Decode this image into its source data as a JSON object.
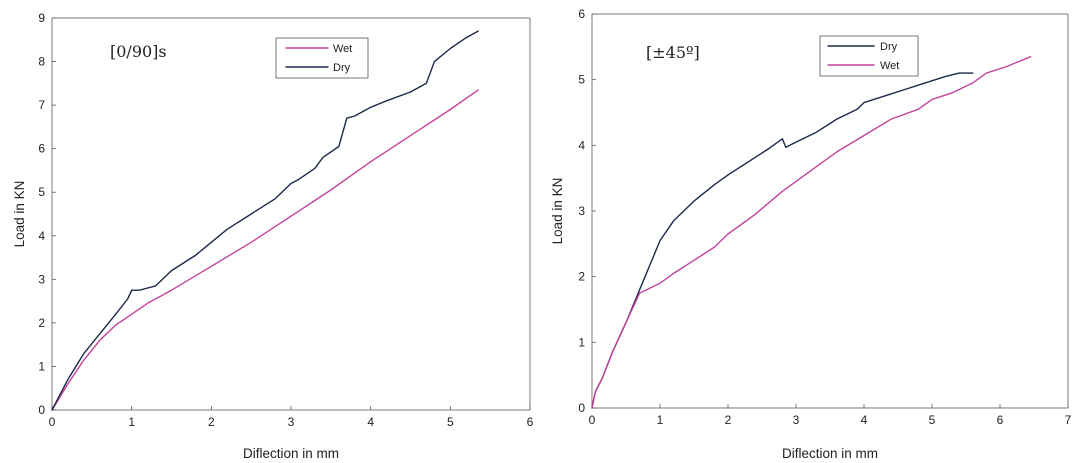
{
  "colors": {
    "wet": "#c2449a",
    "dry": "#1c2a4a"
  },
  "chart_data": [
    {
      "type": "line",
      "annotation": "[0/90]s",
      "xlabel": "Diflection in mm",
      "ylabel": "Load in KN",
      "xlim": [
        0,
        6
      ],
      "ylim": [
        0,
        9
      ],
      "xticks": [
        "0",
        "1",
        "2",
        "3",
        "4",
        "5",
        "6"
      ],
      "yticks": [
        "0",
        "1",
        "2",
        "3",
        "4",
        "5",
        "6",
        "7",
        "8",
        "9"
      ],
      "legend_position": "top-center",
      "grid": false,
      "series": [
        {
          "name": "Wet",
          "color_key": "wet",
          "x": [
            0,
            0.2,
            0.4,
            0.6,
            0.8,
            1.0,
            1.2,
            1.5,
            2.0,
            2.5,
            3.0,
            3.5,
            4.0,
            4.5,
            5.0,
            5.35
          ],
          "y": [
            0,
            0.6,
            1.15,
            1.6,
            1.95,
            2.2,
            2.45,
            2.75,
            3.3,
            3.85,
            4.45,
            5.05,
            5.7,
            6.3,
            6.9,
            7.35
          ]
        },
        {
          "name": "Dry",
          "color_key": "dry",
          "x": [
            0,
            0.2,
            0.4,
            0.6,
            0.8,
            0.95,
            1.0,
            1.1,
            1.2,
            1.3,
            1.5,
            1.8,
            2.0,
            2.2,
            2.5,
            2.8,
            3.0,
            3.1,
            3.3,
            3.4,
            3.6,
            3.7,
            3.8,
            3.9,
            4.0,
            4.2,
            4.5,
            4.7,
            4.8,
            5.0,
            5.2,
            5.35
          ],
          "y": [
            0,
            0.7,
            1.3,
            1.75,
            2.2,
            2.55,
            2.75,
            2.75,
            2.8,
            2.85,
            3.2,
            3.55,
            3.85,
            4.15,
            4.5,
            4.85,
            5.2,
            5.3,
            5.55,
            5.8,
            6.05,
            6.7,
            6.75,
            6.85,
            6.95,
            7.1,
            7.3,
            7.5,
            8.0,
            8.3,
            8.55,
            8.7
          ]
        }
      ]
    },
    {
      "type": "line",
      "annotation": "[±45º]",
      "xlabel": "Diflection in mm",
      "ylabel": "Load in KN",
      "xlim": [
        0,
        7
      ],
      "ylim": [
        0,
        6
      ],
      "xticks": [
        "0",
        "1",
        "2",
        "3",
        "4",
        "5",
        "6",
        "7"
      ],
      "yticks": [
        "0",
        "1",
        "2",
        "3",
        "4",
        "5",
        "6"
      ],
      "legend_position": "top-left",
      "grid": false,
      "series": [
        {
          "name": "Dry",
          "color_key": "dry",
          "x": [
            0,
            0.05,
            0.15,
            0.3,
            0.5,
            0.7,
            0.9,
            1.0,
            1.2,
            1.5,
            1.8,
            2.0,
            2.3,
            2.6,
            2.8,
            2.85,
            3.0,
            3.3,
            3.6,
            3.9,
            4.0,
            4.3,
            4.6,
            4.9,
            5.2,
            5.4,
            5.6
          ],
          "y": [
            0,
            0.25,
            0.45,
            0.85,
            1.3,
            1.8,
            2.3,
            2.55,
            2.85,
            3.15,
            3.4,
            3.55,
            3.75,
            3.95,
            4.1,
            3.97,
            4.05,
            4.2,
            4.4,
            4.55,
            4.65,
            4.75,
            4.85,
            4.95,
            5.05,
            5.1,
            5.1
          ]
        },
        {
          "name": "Wet",
          "color_key": "wet",
          "x": [
            0,
            0.05,
            0.15,
            0.3,
            0.5,
            0.7,
            0.9,
            1.0,
            1.2,
            1.5,
            1.8,
            2.0,
            2.4,
            2.8,
            3.2,
            3.6,
            4.0,
            4.4,
            4.8,
            5.0,
            5.3,
            5.6,
            5.8,
            6.1,
            6.45
          ],
          "y": [
            0,
            0.25,
            0.45,
            0.85,
            1.3,
            1.75,
            1.85,
            1.9,
            2.05,
            2.25,
            2.45,
            2.65,
            2.95,
            3.3,
            3.6,
            3.9,
            4.15,
            4.4,
            4.55,
            4.7,
            4.8,
            4.95,
            5.1,
            5.2,
            5.35
          ]
        }
      ]
    }
  ]
}
